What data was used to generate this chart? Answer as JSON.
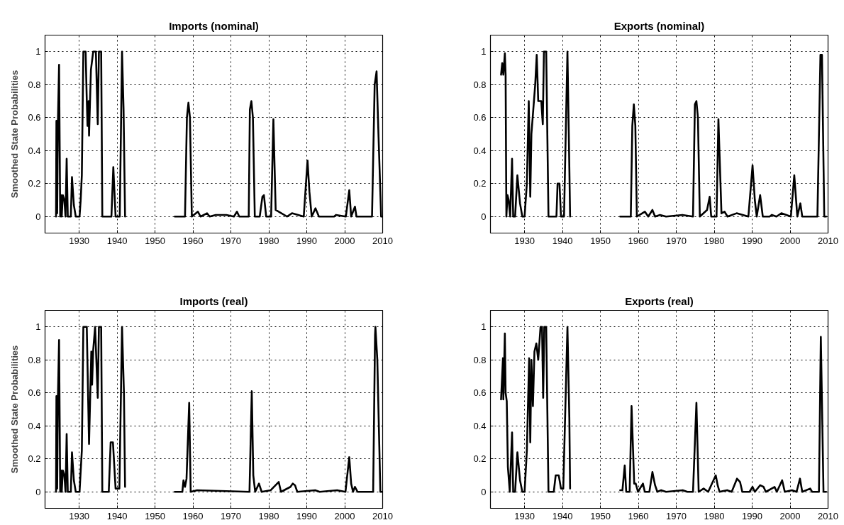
{
  "chart_data": [
    {
      "type": "line",
      "title": "Imports (nominal)",
      "ylabel": "Smoothed State Probabilities",
      "xlim": [
        1921,
        2010
      ],
      "ylim": [
        -0.1,
        1.1
      ],
      "xticks": [
        1930,
        1940,
        1950,
        1960,
        1970,
        1980,
        1990,
        2000,
        2010
      ],
      "yticks": [
        0,
        0.2,
        0.4,
        0.6,
        0.8,
        1
      ],
      "grid": true,
      "line_style": "solid",
      "x": [
        1923.9,
        1924.0,
        1924.2,
        1924.4,
        1924.7,
        1925.0,
        1925.2,
        1925.4,
        1925.7,
        1926.1,
        1926.4,
        1926.7,
        1927.0,
        1927.8,
        1928.1,
        1928.6,
        1929.1,
        1930.1,
        1930.4,
        1930.7,
        1931.1,
        1931.7,
        1932.0,
        1932.2,
        1932.5,
        1932.6,
        1933.1,
        1933.7,
        1934.4,
        1934.9,
        1935.2,
        1935.8,
        1936.1,
        1938.5,
        1939.0,
        1939.6,
        1940.7,
        1941.3,
        1941.7,
        1942.1,
        1948,
        1955.2,
        1957.9,
        1958.4,
        1958.8,
        1959.2,
        1959.7,
        1961.3,
        1962.0,
        1963.7,
        1964.4,
        1966.0,
        1968.8,
        1970.8,
        1971.6,
        1972.2,
        1974.7,
        1975.0,
        1975.4,
        1975.8,
        1976.3,
        1977.6,
        1978.3,
        1978.7,
        1979.3,
        1980.6,
        1981.2,
        1981.8,
        1982.6,
        1984.8,
        1986.1,
        1989.2,
        1990.2,
        1990.7,
        1991.3,
        1992.3,
        1993.2,
        1997.2,
        1997.7,
        2000.3,
        2001.2,
        2001.7,
        2002.7,
        2003.1,
        2007.2,
        2007.9,
        2008.4,
        2008.9,
        2009.6,
        2009.8
      ],
      "series": [
        {
          "color": "#000000",
          "values": [
            0,
            0.58,
            0.02,
            0.58,
            0.92,
            0,
            0.13,
            0,
            0.13,
            0.1,
            0,
            0.35,
            0,
            0,
            0.24,
            0.07,
            0,
            0,
            0.1,
            0.25,
            1,
            1,
            0.71,
            0.55,
            0.7,
            0.49,
            0.89,
            1,
            1,
            0.56,
            1,
            1,
            0,
            0,
            0.3,
            0,
            0,
            1,
            0.65,
            0,
            null,
            0,
            0,
            0.6,
            0.69,
            0.6,
            0,
            0.03,
            0,
            0.02,
            0,
            0.01,
            0.01,
            0,
            0.03,
            0,
            0,
            0.65,
            0.7,
            0.6,
            0,
            0,
            0.12,
            0.13,
            0,
            0,
            0.59,
            0.04,
            0.03,
            0,
            0.02,
            0,
            0.34,
            0.15,
            0,
            0.05,
            0,
            0,
            0.01,
            0,
            0.16,
            0,
            0.06,
            0,
            0,
            0.8,
            0.88,
            0.5,
            0,
            0
          ]
        }
      ]
    },
    {
      "type": "line",
      "title": "Exports (nominal)",
      "xlim": [
        1921,
        2010
      ],
      "ylim": [
        -0.1,
        1.1
      ],
      "xticks": [
        1930,
        1940,
        1950,
        1960,
        1970,
        1980,
        1990,
        2000,
        2010
      ],
      "yticks": [
        0,
        0.2,
        0.4,
        0.6,
        0.8,
        1
      ],
      "grid": true,
      "line_style": "solid",
      "x": [
        1923.8,
        1924.1,
        1924.4,
        1924.8,
        1925.0,
        1925.2,
        1925.5,
        1925.8,
        1926.2,
        1926.7,
        1927.0,
        1927.5,
        1928.1,
        1928.8,
        1929.4,
        1930.0,
        1930.6,
        1931.1,
        1931.5,
        1931.8,
        1932.8,
        1933.2,
        1933.6,
        1934.4,
        1934.8,
        1935.1,
        1935.7,
        1936.3,
        1938.4,
        1938.7,
        1939.2,
        1939.6,
        1940.4,
        1941.3,
        1941.8,
        1942.0,
        1948,
        1955.2,
        1958.0,
        1958.4,
        1958.8,
        1959.2,
        1959.6,
        1961.7,
        1962.6,
        1963.7,
        1964.4,
        1965.7,
        1967.3,
        1971.6,
        1974.4,
        1974.9,
        1975.3,
        1975.7,
        1976.2,
        1978.1,
        1978.8,
        1979.2,
        1980.6,
        1981.1,
        1981.9,
        1982.7,
        1983.5,
        1985.9,
        1989.0,
        1990.1,
        1990.7,
        1991.2,
        1992.1,
        1992.8,
        1994.6,
        1995.2,
        1996.4,
        1997.7,
        2000.2,
        2001.1,
        2001.9,
        2002.7,
        2003.2,
        2007.2,
        2008.0,
        2008.4,
        2009.0,
        2009.5
      ],
      "series": [
        {
          "color": "#000000",
          "values": [
            0.86,
            0.93,
            0.86,
            0.99,
            0.86,
            0,
            0.13,
            0.1,
            0,
            0.35,
            0,
            0,
            0.25,
            0.08,
            0,
            0,
            0.2,
            0.7,
            0.12,
            0.5,
            0.8,
            0.98,
            0.7,
            0.7,
            0.56,
            1,
            1,
            0,
            0,
            0.2,
            0.2,
            0,
            0,
            1,
            0.3,
            0,
            null,
            0,
            0,
            0.55,
            0.68,
            0.55,
            0,
            0.03,
            0,
            0.04,
            0,
            0.01,
            0,
            0.01,
            0,
            0.68,
            0.7,
            0.6,
            0,
            0.04,
            0.12,
            0,
            0,
            0.59,
            0.02,
            0.03,
            0,
            0.02,
            0,
            0.31,
            0.1,
            0,
            0.13,
            0,
            0,
            0.01,
            0,
            0.02,
            0,
            0.25,
            0,
            0.08,
            0,
            0,
            0.98,
            0.98,
            0,
            0
          ]
        }
      ]
    },
    {
      "type": "line",
      "title": "Imports (real)",
      "ylabel": "Smoothed State Probabilities",
      "xlim": [
        1921,
        2010
      ],
      "ylim": [
        -0.1,
        1.1
      ],
      "xticks": [
        1930,
        1940,
        1950,
        1960,
        1970,
        1980,
        1990,
        2000,
        2010
      ],
      "yticks": [
        0,
        0.2,
        0.4,
        0.6,
        0.8,
        1
      ],
      "grid": true,
      "line_style": "solid",
      "x": [
        1923.9,
        1924.0,
        1924.2,
        1924.4,
        1924.7,
        1925.0,
        1925.2,
        1925.4,
        1925.7,
        1926.1,
        1926.4,
        1926.7,
        1927.0,
        1927.8,
        1928.1,
        1928.6,
        1929.1,
        1930.1,
        1930.7,
        1931.1,
        1932.0,
        1932.6,
        1933.2,
        1933.4,
        1933.7,
        1934.2,
        1934.9,
        1935.2,
        1935.8,
        1936.1,
        1937.8,
        1938.3,
        1938.9,
        1939.6,
        1940.6,
        1941.3,
        1941.8,
        1942.1,
        1948,
        1955.2,
        1957.2,
        1957.5,
        1957.9,
        1958.3,
        1959.0,
        1959.4,
        1961.1,
        1974.9,
        1975.5,
        1975.9,
        1976.4,
        1977.4,
        1978.1,
        1980.5,
        1982.6,
        1983.2,
        1985.7,
        1986.3,
        1986.9,
        1987.5,
        1992.2,
        1993.4,
        1998.0,
        2000.2,
        2001.2,
        2001.7,
        2002.2,
        2002.7,
        2003.4,
        2007.5,
        2008.0,
        2008.1,
        2008.6,
        2009.4,
        2009.8
      ],
      "series": [
        {
          "color": "#000000",
          "values": [
            0,
            0.58,
            0.02,
            0.58,
            0.92,
            0,
            0.13,
            0,
            0.13,
            0.1,
            0,
            0.35,
            0,
            0,
            0.24,
            0.07,
            0,
            0,
            0.25,
            1,
            1,
            0.29,
            0.85,
            0.65,
            0.86,
            1,
            0.57,
            1,
            1,
            0,
            0,
            0.3,
            0.3,
            0.02,
            0.02,
            1,
            0.6,
            0.03,
            null,
            0,
            0,
            0.07,
            0.03,
            0.08,
            0.54,
            0,
            0.01,
            0,
            0.61,
            0.1,
            0,
            0.05,
            0,
            0.01,
            0.06,
            0,
            0.03,
            0.05,
            0.04,
            0,
            0.01,
            0,
            0.01,
            0,
            0.21,
            0.05,
            0,
            0.03,
            0,
            0,
            0.95,
            1,
            0.8,
            0,
            0
          ]
        }
      ]
    },
    {
      "type": "line",
      "title": "Exports (real)",
      "xlim": [
        1921,
        2010
      ],
      "ylim": [
        -0.1,
        1.1
      ],
      "xticks": [
        1930,
        1940,
        1950,
        1960,
        1970,
        1980,
        1990,
        2000,
        2010
      ],
      "yticks": [
        0,
        0.2,
        0.4,
        0.6,
        0.8,
        1
      ],
      "grid": true,
      "line_style": "solid",
      "x": [
        1923.8,
        1924.3,
        1924.4,
        1924.8,
        1925.0,
        1925.3,
        1925.6,
        1926.1,
        1926.7,
        1927.0,
        1927.5,
        1928.1,
        1928.8,
        1929.4,
        1930.0,
        1930.6,
        1931.2,
        1931.5,
        1931.8,
        1932.2,
        1932.6,
        1933.1,
        1933.6,
        1934.2,
        1934.6,
        1934.9,
        1935.2,
        1935.7,
        1936.3,
        1937.7,
        1938.2,
        1939.0,
        1939.6,
        1940.2,
        1941.3,
        1941.8,
        1942.0,
        1948,
        1955.2,
        1955.8,
        1956.4,
        1956.8,
        1957.7,
        1958.2,
        1958.9,
        1959.3,
        1959.9,
        1961.2,
        1961.7,
        1962.9,
        1963.7,
        1964.4,
        1965.0,
        1966.0,
        1967.3,
        1971.7,
        1972.9,
        1974.4,
        1975.3,
        1975.9,
        1977.2,
        1978.4,
        1980.4,
        1980.9,
        1981.4,
        1983.4,
        1984.6,
        1986.0,
        1986.8,
        1987.4,
        1989.3,
        1990.1,
        1990.7,
        1992.1,
        1993.0,
        1993.6,
        1995.9,
        1996.5,
        1997.9,
        1998.6,
        2000.5,
        2001.7,
        2002.6,
        2003.2,
        2005.3,
        2005.8,
        2007.6,
        2008.1,
        2008.8,
        2009.5
      ],
      "series": [
        {
          "color": "#000000",
          "values": [
            0.56,
            0.81,
            0.56,
            0.96,
            0.6,
            0.55,
            0.15,
            0,
            0.36,
            0,
            0,
            0.24,
            0.07,
            0,
            0,
            0.25,
            0.81,
            0.3,
            0.8,
            0.52,
            0.85,
            0.9,
            0.8,
            1,
            1,
            0.57,
            1,
            1,
            0,
            0,
            0.1,
            0.1,
            0.02,
            0.02,
            1,
            0.45,
            0.02,
            null,
            0.01,
            0.01,
            0.16,
            0,
            0,
            0.52,
            0.05,
            0.05,
            0,
            0.05,
            0,
            0,
            0.12,
            0.04,
            0,
            0.01,
            0,
            0.01,
            0,
            0,
            0.54,
            0,
            0.02,
            0,
            0.1,
            0.04,
            0,
            0.01,
            0,
            0.08,
            0.06,
            0,
            0,
            0.03,
            0,
            0.04,
            0.03,
            0,
            0.03,
            0,
            0.07,
            0,
            0.01,
            0,
            0.08,
            0,
            0.02,
            0,
            0,
            0.94,
            0,
            0
          ]
        }
      ]
    }
  ]
}
